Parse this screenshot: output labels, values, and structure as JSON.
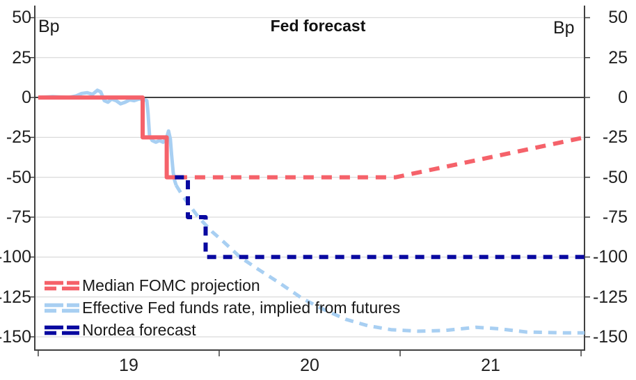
{
  "chart_data": {
    "type": "line",
    "title": "Fed forecast",
    "y_unit_left": "Bp",
    "y_unit_right": "Bp",
    "xlim": [
      18.981,
      22.019
    ],
    "ylim": [
      -158.3,
      57.6
    ],
    "x_year_ticks": [
      19,
      20,
      21,
      22
    ],
    "x_tick_labels": [
      {
        "label": "19",
        "x": 19.5
      },
      {
        "label": "20",
        "x": 20.5
      },
      {
        "label": "21",
        "x": 21.5
      }
    ],
    "y_ticks": [
      {
        "label": "50",
        "value": 50
      },
      {
        "label": "25",
        "value": 25
      },
      {
        "label": "0",
        "value": 0
      },
      {
        "label": "-25",
        "value": -25
      },
      {
        "label": "-50",
        "value": -50
      },
      {
        "label": "-75",
        "value": -75
      },
      {
        "label": "-100",
        "value": -100
      },
      {
        "label": "-125",
        "value": -125
      },
      {
        "label": "-150",
        "value": -150
      }
    ],
    "grid_values": [
      50,
      25,
      -25,
      -50,
      -75,
      -100,
      -125,
      -150
    ],
    "zero_value": 0,
    "colors": {
      "grid": "#dadada",
      "axis": "#404040",
      "zero_line": "#404040",
      "text": "#1a1a1a",
      "red": "#f5626a",
      "light_blue": "#a8cff2",
      "navy": "#0909a0"
    },
    "series": [
      {
        "name": "Effective Fed funds rate, implied from futures",
        "color": "#a8cff2",
        "width": 5,
        "dash": "12 9",
        "segments": [
          {
            "style": "solid",
            "points": [
              [
                19.0,
                0
              ],
              [
                19.08,
                0.5
              ],
              [
                19.17,
                0
              ],
              [
                19.21,
                1
              ],
              [
                19.24,
                2.5
              ],
              [
                19.27,
                3
              ],
              [
                19.3,
                2
              ],
              [
                19.327,
                4.5
              ],
              [
                19.345,
                3.5
              ],
              [
                19.365,
                -2
              ],
              [
                19.385,
                -3
              ],
              [
                19.405,
                -1
              ],
              [
                19.43,
                -2
              ],
              [
                19.455,
                -4
              ],
              [
                19.48,
                -3
              ],
              [
                19.505,
                -1.5
              ],
              [
                19.53,
                -2
              ],
              [
                19.555,
                -1
              ],
              [
                19.58,
                -1
              ],
              [
                19.6,
                -2
              ],
              [
                19.607,
                -10
              ],
              [
                19.615,
                -24
              ],
              [
                19.63,
                -27
              ],
              [
                19.65,
                -28
              ],
              [
                19.67,
                -27
              ],
              [
                19.69,
                -28
              ],
              [
                19.708,
                -26
              ],
              [
                19.72,
                -21
              ],
              [
                19.73,
                -26
              ],
              [
                19.737,
                -36
              ],
              [
                19.746,
                -47
              ],
              [
                19.754,
                -52
              ],
              [
                19.762,
                -55
              ]
            ]
          },
          {
            "style": "dashed",
            "points": [
              [
                19.762,
                -55
              ],
              [
                19.8,
                -62
              ],
              [
                19.885,
                -75
              ],
              [
                19.96,
                -84
              ],
              [
                20.02,
                -90
              ],
              [
                20.115,
                -100
              ],
              [
                20.22,
                -108
              ],
              [
                20.33,
                -116
              ],
              [
                20.46,
                -126
              ],
              [
                20.58,
                -133
              ],
              [
                20.7,
                -139
              ],
              [
                20.82,
                -143
              ],
              [
                20.95,
                -145.5
              ],
              [
                21.1,
                -146.5
              ],
              [
                21.25,
                -146
              ],
              [
                21.42,
                -144
              ],
              [
                21.55,
                -145
              ],
              [
                21.7,
                -147
              ],
              [
                21.9,
                -147.5
              ],
              [
                22.019,
                -147.5
              ]
            ]
          }
        ]
      },
      {
        "name": "Median FOMC projection",
        "color": "#f5626a",
        "width": 6,
        "dash": "15 11",
        "segments": [
          {
            "style": "solid",
            "points": [
              [
                19.0,
                0
              ],
              [
                19.577,
                0
              ],
              [
                19.577,
                -25
              ],
              [
                19.71,
                -25
              ],
              [
                19.71,
                -50
              ],
              [
                19.765,
                -50
              ]
            ]
          },
          {
            "style": "dashed",
            "points": [
              [
                19.765,
                -50
              ],
              [
                20.975,
                -50
              ],
              [
                22.019,
                -25
              ]
            ]
          }
        ]
      },
      {
        "name": "Nordea forecast",
        "color": "#0909a0",
        "width": 6,
        "dash": "13 10",
        "segments": [
          {
            "style": "dashed",
            "points": [
              [
                19.755,
                -50
              ],
              [
                19.827,
                -50
              ],
              [
                19.827,
                -75
              ],
              [
                19.925,
                -75
              ],
              [
                19.925,
                -100
              ],
              [
                22.019,
                -100
              ]
            ]
          }
        ]
      }
    ],
    "legend": [
      {
        "label": "Median FOMC projection",
        "color": "#f5626a"
      },
      {
        "label": "Effective Fed funds rate, implied from futures",
        "color": "#a8cff2"
      },
      {
        "label": "Nordea forecast",
        "color": "#0909a0"
      }
    ]
  }
}
